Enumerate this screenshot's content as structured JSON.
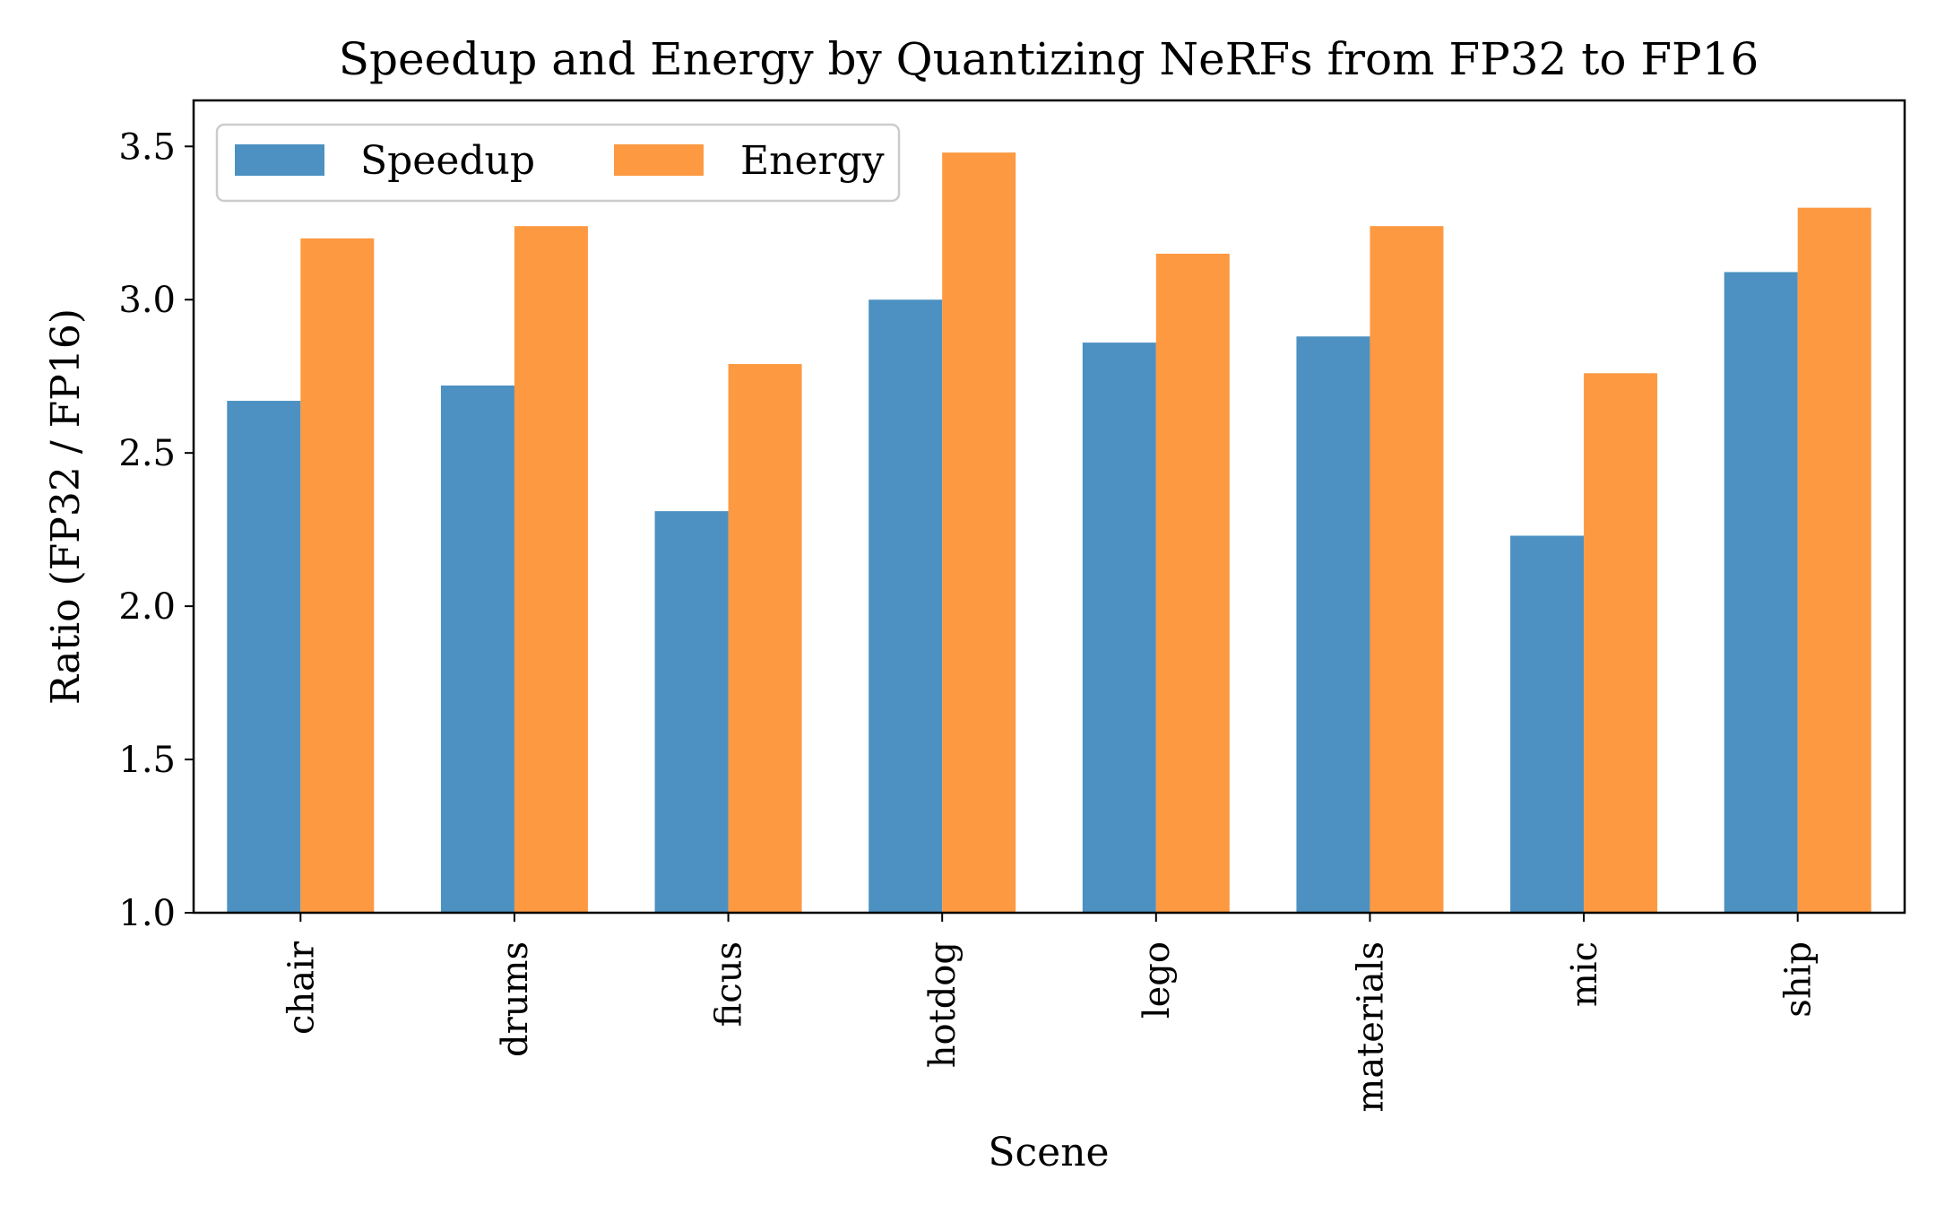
{
  "chart_data": {
    "type": "bar",
    "title": "Speedup and Energy by Quantizing NeRFs from FP32 to FP16",
    "xlabel": "Scene",
    "ylabel": "Ratio (FP32 / FP16)",
    "categories": [
      "chair",
      "drums",
      "ficus",
      "hotdog",
      "lego",
      "materials",
      "mic",
      "ship"
    ],
    "series": [
      {
        "name": "Speedup",
        "color": "#4c91c1",
        "values": [
          2.67,
          2.72,
          2.31,
          3.0,
          2.86,
          2.88,
          2.23,
          3.09
        ]
      },
      {
        "name": "Energy",
        "color": "#fd9941",
        "values": [
          3.2,
          3.24,
          2.79,
          3.48,
          3.15,
          3.24,
          2.76,
          3.3
        ]
      }
    ],
    "ylim": [
      1.0,
      3.65
    ],
    "yticks": [
      1.0,
      1.5,
      2.0,
      2.5,
      3.0,
      3.5
    ],
    "ytick_labels": [
      "1.0",
      "1.5",
      "2.0",
      "2.5",
      "3.0",
      "3.5"
    ],
    "grid": false,
    "legend": "top-left"
  }
}
